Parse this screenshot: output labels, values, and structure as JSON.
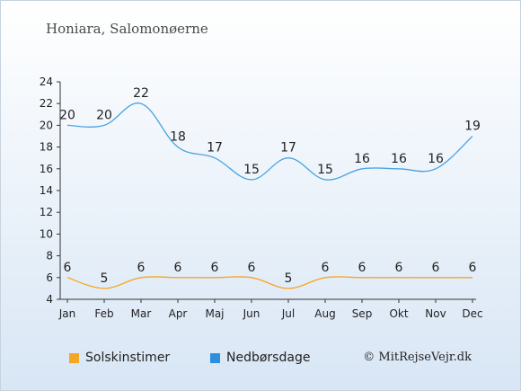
{
  "title": "Honiara, Salomonøerne",
  "credit": "© MitRejseVejr.dk",
  "chart_data": {
    "type": "line",
    "categories": [
      "Jan",
      "Feb",
      "Mar",
      "Apr",
      "Maj",
      "Jun",
      "Jul",
      "Aug",
      "Sep",
      "Okt",
      "Nov",
      "Dec"
    ],
    "series": [
      {
        "name": "Solskinstimer",
        "color": "#f5a623",
        "values": [
          6,
          5,
          6,
          6,
          6,
          6,
          5,
          6,
          6,
          6,
          6,
          6
        ]
      },
      {
        "name": "Nedbørsdage",
        "color": "#4aa3df",
        "values": [
          20,
          20,
          22,
          18,
          17,
          15,
          17,
          15,
          16,
          16,
          16,
          19
        ]
      }
    ],
    "ylim": [
      4,
      24
    ],
    "yticks": [
      4,
      6,
      8,
      10,
      12,
      14,
      16,
      18,
      20,
      22,
      24
    ],
    "grid": false,
    "legend": "bottom-left",
    "xlabel": "",
    "ylabel": ""
  }
}
